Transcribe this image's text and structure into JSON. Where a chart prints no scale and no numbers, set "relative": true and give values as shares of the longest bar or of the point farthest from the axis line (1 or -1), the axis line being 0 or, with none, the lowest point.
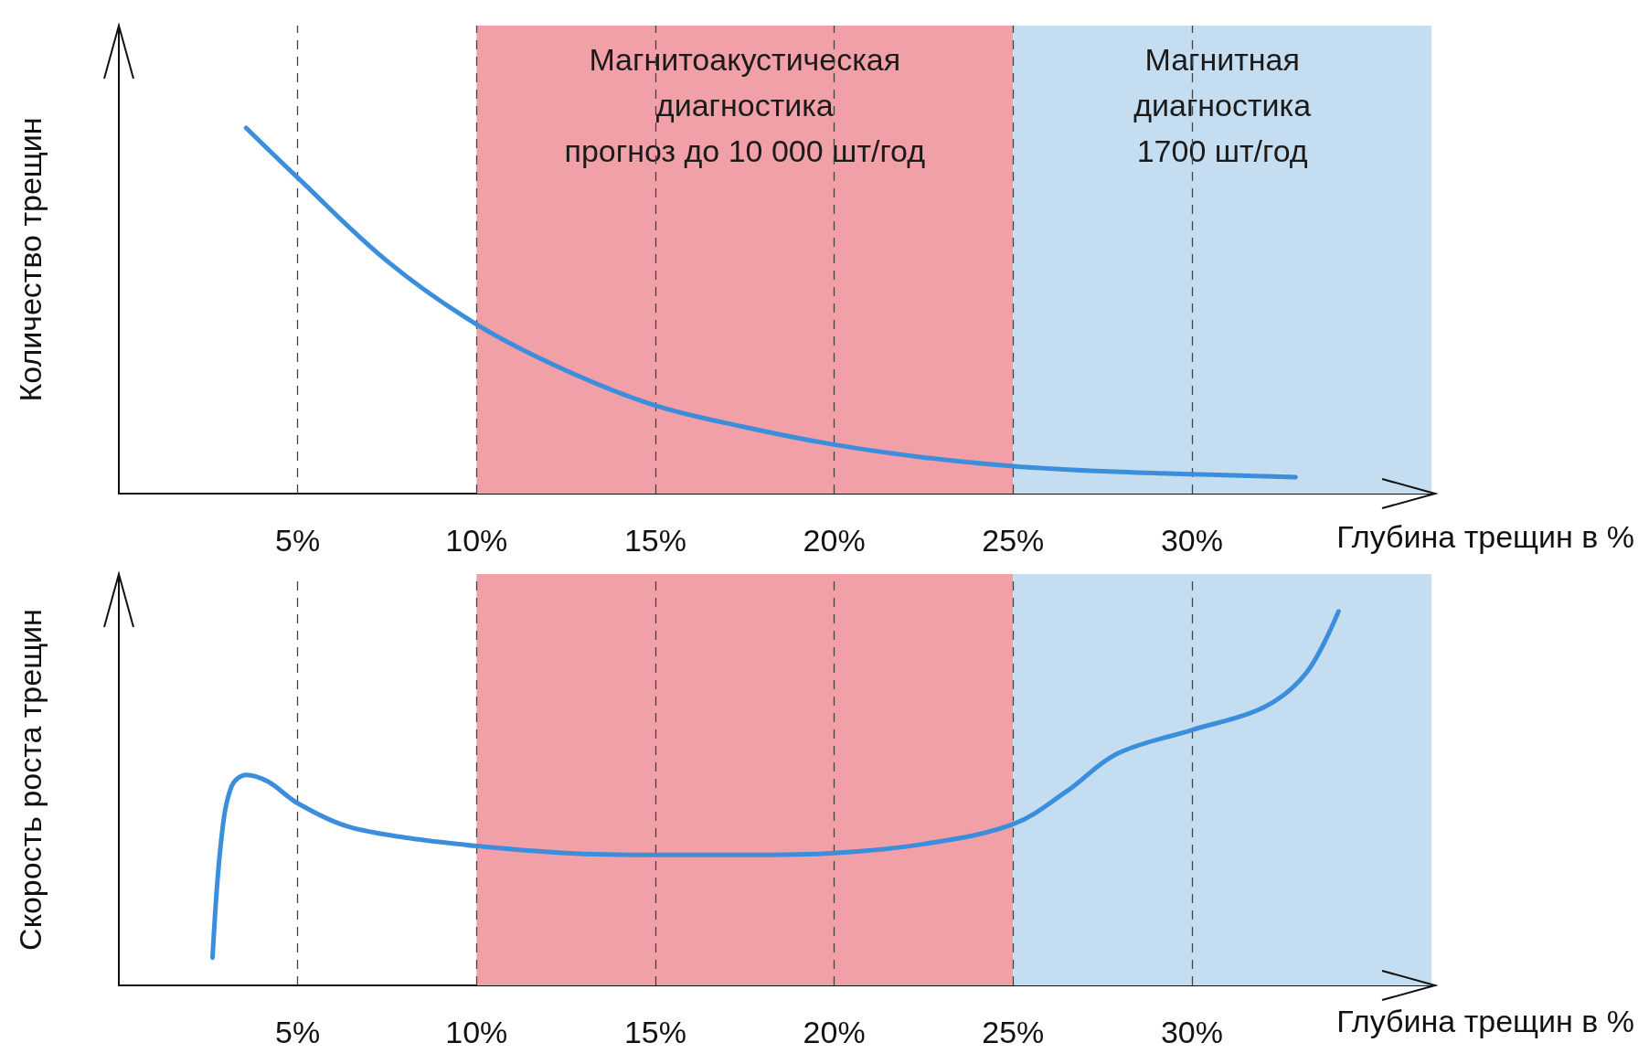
{
  "chart_data": [
    {
      "type": "line",
      "ylabel": "Количество трещин",
      "xlabel": "Глубина трещин в %",
      "relative": true,
      "xlim": [
        0,
        36.8
      ],
      "xticks": [
        {
          "value": 5,
          "label": "5%"
        },
        {
          "value": 10,
          "label": "10%"
        },
        {
          "value": 15,
          "label": "15%"
        },
        {
          "value": 20,
          "label": "20%"
        },
        {
          "value": 25,
          "label": "25%"
        },
        {
          "value": 30,
          "label": "30%"
        }
      ],
      "tick_labels": "x",
      "grid": "x",
      "marker": "none",
      "line_style": "solid",
      "bands": [
        {
          "axis": "x",
          "from": 10,
          "to": 25,
          "label": "Магнитоакустическая\nдиагностика\nпрогноз до 10 000 шт/год",
          "color": "#f2a0a8"
        },
        {
          "axis": "x",
          "from": 25,
          "to": 36.7,
          "label": "Магнитная\nдиагностика\n1700 шт/год",
          "color": "#c5ddf0"
        }
      ],
      "series": [
        {
          "color": "#3b8edb",
          "x": [
            3.56,
            5,
            7.5,
            10,
            12.5,
            15,
            17.5,
            20,
            22.5,
            25,
            27.5,
            30,
            32.9
          ],
          "values": [
            1.0,
            0.864,
            0.636,
            0.463,
            0.337,
            0.241,
            0.182,
            0.134,
            0.099,
            0.075,
            0.061,
            0.053,
            0.045
          ]
        }
      ]
    },
    {
      "type": "line",
      "ylabel": "Скорость роста трещин",
      "xlabel": "Глубина трещин в %",
      "relative": true,
      "xlim": [
        0,
        36.8
      ],
      "xticks": [
        {
          "value": 5,
          "label": "5%"
        },
        {
          "value": 10,
          "label": "10%"
        },
        {
          "value": 15,
          "label": "15%"
        },
        {
          "value": 20,
          "label": "20%"
        },
        {
          "value": 25,
          "label": "25%"
        },
        {
          "value": 30,
          "label": "30%"
        }
      ],
      "tick_labels": "x",
      "grid": "x",
      "marker": "none",
      "line_style": "solid",
      "bands": [
        {
          "axis": "x",
          "from": 10,
          "to": 25,
          "color": "#f2a0a8"
        },
        {
          "axis": "x",
          "from": 25,
          "to": 36.7,
          "color": "#c5ddf0"
        }
      ],
      "series": [
        {
          "color": "#3b8edb",
          "x": [
            2.62,
            2.86,
            3.15,
            3.56,
            4.17,
            5,
            6.36,
            8.1,
            10,
            12.5,
            15,
            17.5,
            20,
            22.5,
            25,
            26.5,
            27.9,
            30,
            32,
            33.2,
            34.1
          ],
          "values": [
            0.074,
            0.386,
            0.532,
            0.563,
            0.545,
            0.487,
            0.426,
            0.394,
            0.373,
            0.354,
            0.349,
            0.349,
            0.354,
            0.378,
            0.431,
            0.519,
            0.619,
            0.683,
            0.743,
            0.836,
            1.0
          ]
        }
      ]
    }
  ]
}
